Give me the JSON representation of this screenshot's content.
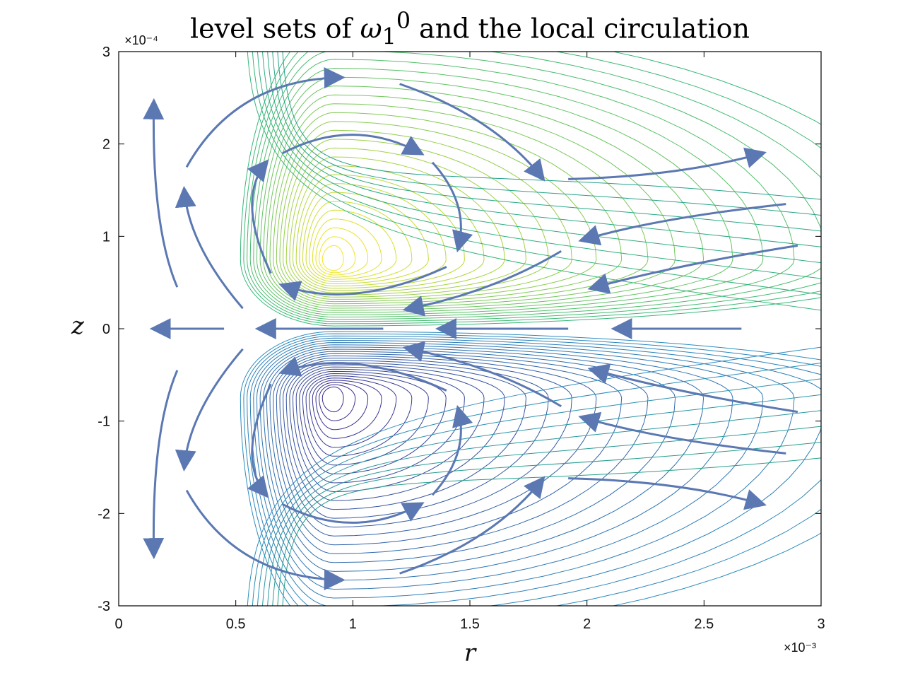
{
  "chart_data": {
    "type": "contour",
    "title_text": "level sets of ",
    "title_symbol": "ω",
    "title_subscript": "1",
    "title_superscript": "0",
    "title_rest": " and the local circulation",
    "xlabel": "r",
    "ylabel": "z",
    "xlim": [
      0,
      3
    ],
    "ylim": [
      -3,
      3
    ],
    "x_scale": "×10⁻³",
    "y_scale": "×10⁻⁴",
    "x_ticks": [
      "0",
      "0.5",
      "1",
      "1.5",
      "2",
      "2.5",
      "3"
    ],
    "y_ticks": [
      "-3",
      "-2",
      "-1",
      "0",
      "1",
      "2",
      "3"
    ],
    "colors": {
      "arrow": "#5b78b2",
      "contour_positive_high": "#f7e720",
      "contour_positive_low": "#35b779",
      "contour_negative_low": "#2b8cbe",
      "contour_negative_high": "#3b2a8a"
    }
  }
}
